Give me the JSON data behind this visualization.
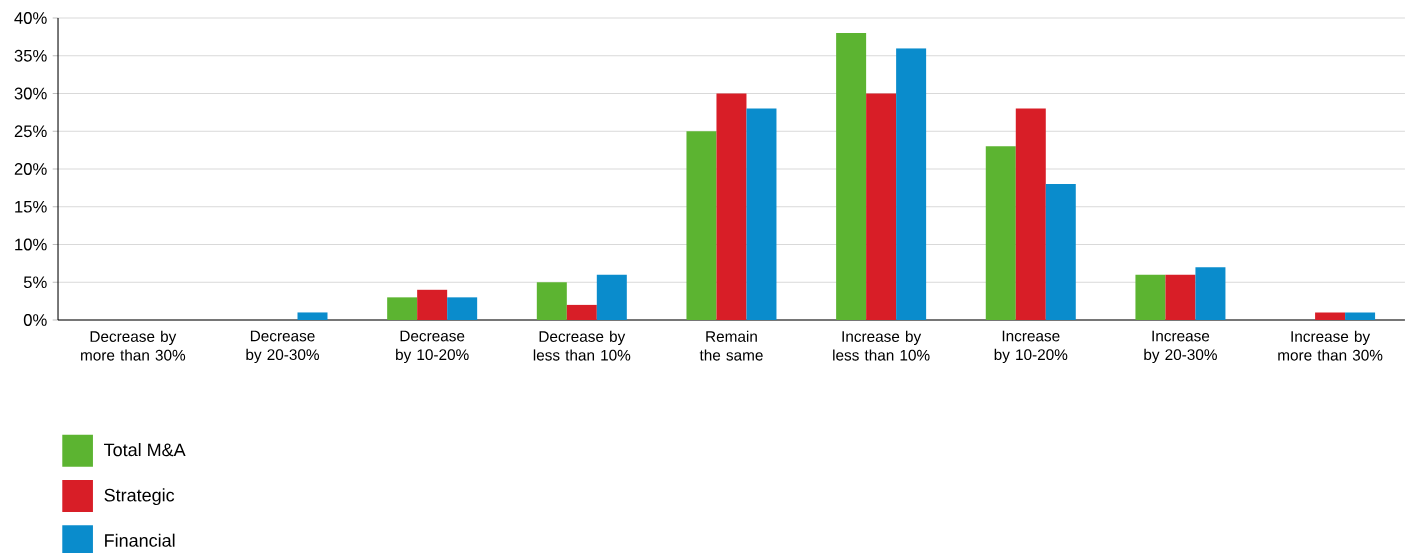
{
  "chart_data": {
    "type": "bar",
    "categories": [
      "Decrease by more than 30%",
      "Decrease by 20-30%",
      "Decrease by 10-20%",
      "Decrease by less than 10%",
      "Remain the same",
      "Increase by less than 10%",
      "Increase by 10-20%",
      "Increase by 20-30%",
      "Increase by more than 30%"
    ],
    "series": [
      {
        "name": "Total M&A",
        "color": "#5cb431",
        "values": [
          0,
          0,
          3,
          5,
          25,
          38,
          23,
          6,
          0
        ]
      },
      {
        "name": "Strategic",
        "color": "#d81e27",
        "values": [
          0,
          0,
          4,
          2,
          30,
          30,
          28,
          6,
          1
        ]
      },
      {
        "name": "Financial",
        "color": "#0a8ccc",
        "values": [
          0,
          1,
          3,
          6,
          28,
          36,
          18,
          7,
          1
        ]
      }
    ],
    "ylim": [
      0,
      40
    ],
    "yticks": [
      {
        "value": 0,
        "label": "0%"
      },
      {
        "value": 5,
        "label": "5%"
      },
      {
        "value": 10,
        "label": "10%"
      },
      {
        "value": 15,
        "label": "15%"
      },
      {
        "value": 20,
        "label": "20%"
      },
      {
        "value": 25,
        "label": "25%"
      },
      {
        "value": 30,
        "label": "30%"
      },
      {
        "value": 35,
        "label": "35%"
      },
      {
        "value": 40,
        "label": "40%"
      }
    ],
    "grid": "y",
    "legend": "bottom left"
  }
}
